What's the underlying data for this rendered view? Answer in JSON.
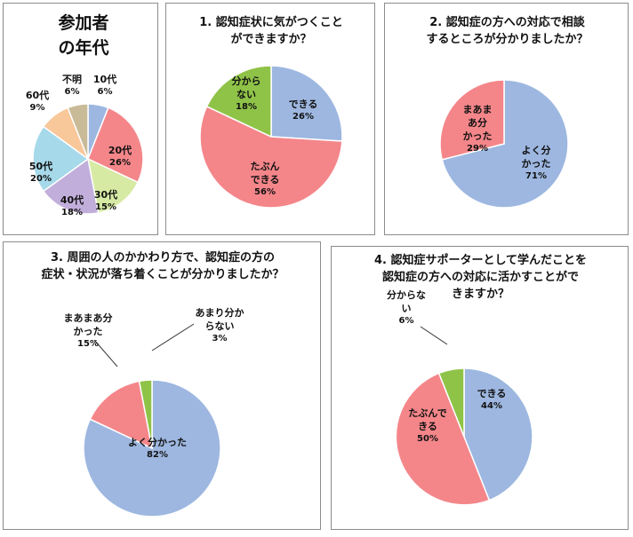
{
  "colors": {
    "blue": "#9db7e0",
    "red": "#f4868a",
    "green": "#8fc348",
    "lightgreen": "#d6eaa4",
    "lavender": "#c1aedb",
    "lightblue": "#a6d9ea",
    "peach": "#f8c79a",
    "tan": "#c9bb98",
    "border": "#8c8c8c"
  },
  "chart_data": [
    {
      "type": "pie",
      "title": "参加者の年代",
      "title_lines": [
        "参加者",
        "の年代"
      ],
      "start_angle": 0,
      "slices": [
        {
          "key": "10",
          "name": "10代",
          "value": 6,
          "label": "6%",
          "color": "#9db7e0"
        },
        {
          "key": "20",
          "name": "20代",
          "value": 26,
          "label": "26%",
          "color": "#f4868a"
        },
        {
          "key": "30",
          "name": "30代",
          "value": 15,
          "label": "15%",
          "color": "#d6eaa4"
        },
        {
          "key": "40",
          "name": "40代",
          "value": 18,
          "label": "18%",
          "color": "#c1aedb"
        },
        {
          "key": "50",
          "name": "50代",
          "value": 20,
          "label": "20%",
          "color": "#a6d9ea"
        },
        {
          "key": "60",
          "name": "60代",
          "value": 9,
          "label": "9%",
          "color": "#f8c79a"
        },
        {
          "key": "unknown",
          "name": "不明",
          "value": 6,
          "label": "6%",
          "color": "#c9bb98"
        }
      ]
    },
    {
      "type": "pie",
      "title": "1. 認知症状に気がつくことができますか？",
      "title_lines": [
        "1. 認知症状に気がつくこと",
        "ができますか？"
      ],
      "start_angle": 0,
      "slices": [
        {
          "key": "yes",
          "name": "できる",
          "value": 26,
          "label": "26%",
          "color": "#9db7e0"
        },
        {
          "key": "maybe",
          "name": "たぶんできる",
          "name_lines": [
            "たぶん",
            "できる"
          ],
          "value": 56,
          "label": "56%",
          "color": "#f4868a"
        },
        {
          "key": "unknown",
          "name": "分からない",
          "name_lines": [
            "分から",
            "ない"
          ],
          "value": 18,
          "label": "18%",
          "color": "#8fc348"
        }
      ]
    },
    {
      "type": "pie",
      "title": "2. 認知症の方への対応で相談するところが分かりましたか？",
      "title_lines": [
        "2. 認知症の方への対応で相談",
        "するところが分かりましたか？"
      ],
      "start_angle": 0,
      "slices": [
        {
          "key": "yes",
          "name": "よく分かった",
          "name_lines": [
            "よく分",
            "かった"
          ],
          "value": 71,
          "label": "71%",
          "color": "#9db7e0"
        },
        {
          "key": "somewhat",
          "name": "まあまあ分かった",
          "name_lines": [
            "まあま",
            "あ分",
            "かった"
          ],
          "value": 29,
          "label": "29%",
          "color": "#f4868a"
        }
      ]
    },
    {
      "type": "pie",
      "title": "3. 周囲の人のかかわり方で、認知症の方の症状・状況が落ち着くことが分かりましたか？",
      "title_lines": [
        "3. 周囲の人のかかわり方で、認知症の方の",
        "症状・状況が落ち着くことが分かりましたか？"
      ],
      "start_angle": 0,
      "slices": [
        {
          "key": "yes",
          "name": "よく分かった",
          "value": 82,
          "label": "82%",
          "color": "#9db7e0"
        },
        {
          "key": "somewhat",
          "name": "まあまあ分かった",
          "name_lines": [
            "まあまあ分",
            "かった"
          ],
          "value": 15,
          "label": "15%",
          "color": "#f4868a"
        },
        {
          "key": "notreally",
          "name": "あまり分からない",
          "name_lines": [
            "あまり分か",
            "らない"
          ],
          "value": 3,
          "label": "3%",
          "color": "#8fc348"
        }
      ]
    },
    {
      "type": "pie",
      "title": "4. 認知症サポーターとして学んだことを認知症の方への対応に活かすことができますか？",
      "title_lines": [
        "4. 認知症サポーターとして学んだことを",
        "認知症の方への対応に活かすことがで",
        "きますか？"
      ],
      "start_angle": 0,
      "slices": [
        {
          "key": "yes",
          "name": "できる",
          "value": 44,
          "label": "44%",
          "color": "#9db7e0"
        },
        {
          "key": "maybe",
          "name": "たぶんできる",
          "name_lines": [
            "たぶんで",
            "きる"
          ],
          "value": 50,
          "label": "50%",
          "color": "#f4868a"
        },
        {
          "key": "unknown",
          "name": "分からない",
          "name_lines": [
            "分からな",
            "い"
          ],
          "value": 6,
          "label": "6%",
          "color": "#8fc348"
        }
      ]
    }
  ]
}
